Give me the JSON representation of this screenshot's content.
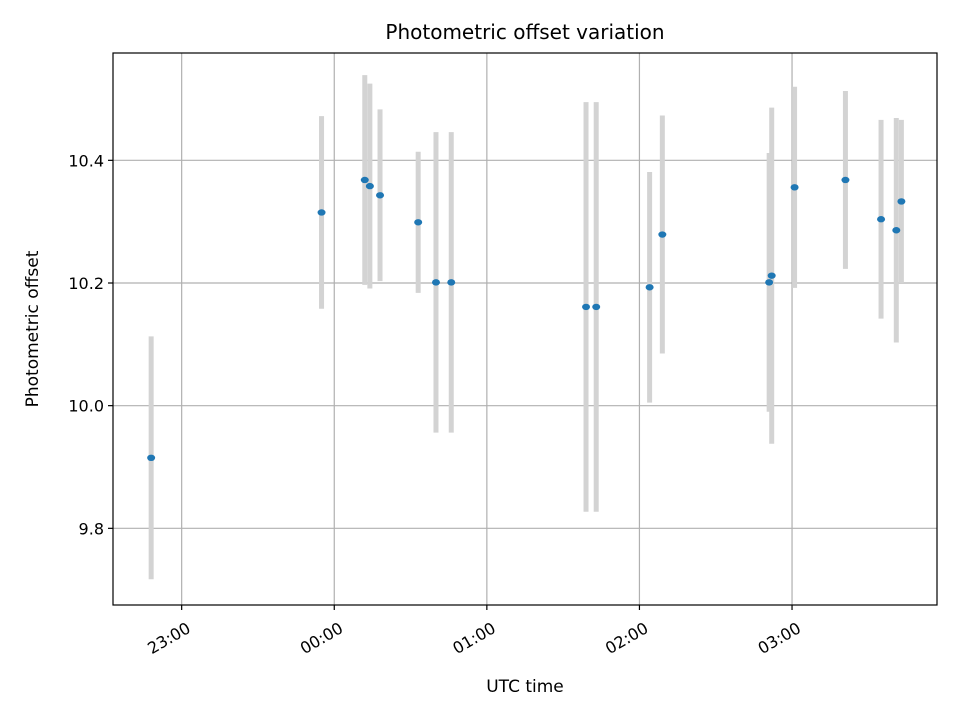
{
  "chart_data": {
    "type": "scatter",
    "title": "Photometric offset variation",
    "xlabel": "UTC time",
    "ylabel": "Photometric offset",
    "x_axis_type": "time",
    "xlim": [
      "22:33",
      "03:57"
    ],
    "ylim": [
      9.675,
      10.575
    ],
    "x_ticks": [
      "23:00",
      "00:00",
      "01:00",
      "02:00",
      "03:00"
    ],
    "y_ticks": [
      9.8,
      10.0,
      10.2,
      10.4
    ],
    "y_tick_labels": [
      "9.8",
      "10.0",
      "10.2",
      "10.4"
    ],
    "grid": true,
    "marker_color": "#1f77b4",
    "errorbar_color": "#d3d3d3",
    "points": [
      {
        "x": "22:48",
        "y": 9.915,
        "yerr": 0.198
      },
      {
        "x": "23:55",
        "y": 10.315,
        "yerr": 0.157
      },
      {
        "x": "00:12",
        "y": 10.368,
        "yerr": 0.171
      },
      {
        "x": "00:14",
        "y": 10.358,
        "yerr": 0.167
      },
      {
        "x": "00:18",
        "y": 10.343,
        "yerr": 0.14
      },
      {
        "x": "00:33",
        "y": 10.299,
        "yerr": 0.115
      },
      {
        "x": "00:40",
        "y": 10.201,
        "yerr": 0.245
      },
      {
        "x": "00:46",
        "y": 10.201,
        "yerr": 0.245
      },
      {
        "x": "01:39",
        "y": 10.161,
        "yerr": 0.334
      },
      {
        "x": "01:43",
        "y": 10.161,
        "yerr": 0.334
      },
      {
        "x": "02:04",
        "y": 10.193,
        "yerr": 0.188
      },
      {
        "x": "02:09",
        "y": 10.279,
        "yerr": 0.194
      },
      {
        "x": "02:51",
        "y": 10.201,
        "yerr": 0.211
      },
      {
        "x": "02:52",
        "y": 10.212,
        "yerr": 0.274
      },
      {
        "x": "03:01",
        "y": 10.356,
        "yerr": 0.164
      },
      {
        "x": "03:21",
        "y": 10.368,
        "yerr": 0.145
      },
      {
        "x": "03:35",
        "y": 10.304,
        "yerr": 0.162
      },
      {
        "x": "03:41",
        "y": 10.286,
        "yerr": 0.183
      },
      {
        "x": "03:43",
        "y": 10.333,
        "yerr": 0.133
      }
    ]
  }
}
